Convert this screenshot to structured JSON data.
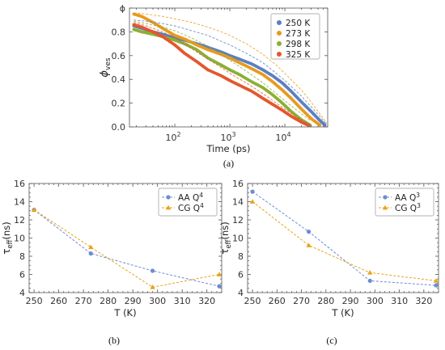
{
  "chart_data": [
    {
      "type": "scatter",
      "panel_caption": "(a)",
      "xlabel": "Time (ps)",
      "ylabel": "ϕ_ves",
      "ylabel_main": "ϕ",
      "ylabel_sub": "ves",
      "xscale": "log",
      "xlim": [
        15,
        60000
      ],
      "ylim": [
        0.0,
        1.0
      ],
      "x_ticks": [
        {
          "value": 100,
          "label_base": "10",
          "label_exp": "2"
        },
        {
          "value": 1000,
          "label_base": "10",
          "label_exp": "3"
        },
        {
          "value": 10000,
          "label_base": "10",
          "label_exp": "4"
        }
      ],
      "y_ticks": [
        {
          "value": 0.0,
          "label": "0.0"
        },
        {
          "value": 0.2,
          "label": "0.2"
        },
        {
          "value": 0.4,
          "label": "0.4"
        },
        {
          "value": 0.6,
          "label": "0.6"
        },
        {
          "value": 0.8,
          "label": "0.8"
        },
        {
          "value": 1.0,
          "label": "ϕ"
        }
      ],
      "legend_position": "top-right",
      "series": [
        {
          "name": "250 K",
          "color": "#5b7fc2",
          "x": [
            18,
            25,
            40,
            60,
            100,
            150,
            250,
            400,
            700,
            1000,
            1500,
            2500,
            4000,
            6000,
            9000,
            13000,
            20000,
            30000,
            42000,
            55000
          ],
          "y": [
            0.85,
            0.83,
            0.8,
            0.78,
            0.75,
            0.73,
            0.7,
            0.67,
            0.63,
            0.6,
            0.57,
            0.53,
            0.48,
            0.43,
            0.37,
            0.3,
            0.21,
            0.13,
            0.06,
            0.01
          ],
          "fit_x": [
            18,
            30,
            60,
            100,
            200,
            400,
            700,
            1000,
            2000,
            4000,
            7000,
            10000,
            20000,
            30000,
            45000,
            58000
          ],
          "fit_y": [
            0.9,
            0.89,
            0.87,
            0.85,
            0.81,
            0.77,
            0.72,
            0.69,
            0.62,
            0.54,
            0.45,
            0.39,
            0.26,
            0.17,
            0.08,
            0.02
          ]
        },
        {
          "name": "273 K",
          "color": "#e89a1e",
          "x": [
            18,
            25,
            40,
            60,
            100,
            150,
            250,
            400,
            700,
            1000,
            1500,
            2500,
            4000,
            6000,
            9000,
            13000,
            20000,
            30000,
            45000
          ],
          "y": [
            0.95,
            0.93,
            0.88,
            0.83,
            0.77,
            0.74,
            0.69,
            0.65,
            0.61,
            0.58,
            0.54,
            0.49,
            0.44,
            0.38,
            0.31,
            0.24,
            0.15,
            0.07,
            0.01
          ],
          "fit_x": [
            18,
            30,
            60,
            100,
            200,
            400,
            700,
            1000,
            2000,
            4000,
            7000,
            10000,
            20000,
            30000,
            45000,
            58000
          ],
          "fit_y": [
            0.96,
            0.95,
            0.93,
            0.91,
            0.88,
            0.84,
            0.8,
            0.77,
            0.7,
            0.61,
            0.52,
            0.45,
            0.31,
            0.21,
            0.1,
            0.03
          ]
        },
        {
          "name": "298 K",
          "color": "#8ab034",
          "x": [
            18,
            25,
            40,
            60,
            100,
            150,
            250,
            400,
            700,
            1000,
            1500,
            2500,
            4000,
            6000,
            9000,
            13000,
            20000,
            30000
          ],
          "y": [
            0.82,
            0.8,
            0.78,
            0.76,
            0.73,
            0.7,
            0.65,
            0.58,
            0.52,
            0.48,
            0.44,
            0.38,
            0.33,
            0.27,
            0.2,
            0.13,
            0.06,
            0.01
          ],
          "fit_x": [
            18,
            30,
            60,
            100,
            200,
            400,
            700,
            1000,
            2000,
            4000,
            7000,
            10000,
            20000,
            30000
          ],
          "fit_y": [
            0.89,
            0.87,
            0.84,
            0.81,
            0.75,
            0.68,
            0.61,
            0.56,
            0.47,
            0.37,
            0.28,
            0.22,
            0.11,
            0.05
          ]
        },
        {
          "name": "325 K",
          "color": "#e4572e",
          "x": [
            18,
            25,
            40,
            60,
            100,
            150,
            250,
            400,
            700,
            1000,
            1500,
            2500,
            4000,
            6000,
            9000,
            13000,
            20000,
            28000
          ],
          "y": [
            0.86,
            0.84,
            0.8,
            0.76,
            0.69,
            0.62,
            0.55,
            0.48,
            0.43,
            0.39,
            0.35,
            0.3,
            0.24,
            0.19,
            0.14,
            0.09,
            0.04,
            0.01
          ],
          "fit_x": [
            18,
            30,
            60,
            100,
            200,
            400,
            700,
            1000,
            2000,
            4000,
            7000,
            10000,
            20000,
            28000
          ],
          "fit_y": [
            0.88,
            0.85,
            0.8,
            0.75,
            0.66,
            0.57,
            0.5,
            0.45,
            0.37,
            0.28,
            0.2,
            0.15,
            0.06,
            0.02
          ]
        }
      ]
    },
    {
      "type": "line",
      "panel_caption": "(b)",
      "xlabel": "T (K)",
      "ylabel": "τ_eff(ns)",
      "ylabel_main": "τ",
      "ylabel_sub": "eff",
      "ylabel_rest": "(ns)",
      "xlim": [
        248,
        326
      ],
      "ylim": [
        4,
        16
      ],
      "x_ticks": [
        250,
        260,
        270,
        280,
        290,
        300,
        310,
        320
      ],
      "y_ticks": [
        4,
        6,
        8,
        10,
        12,
        14,
        16
      ],
      "legend_position": "top-right",
      "series": [
        {
          "name": "AA Q⁴",
          "name_text": "AA Q",
          "name_sup": "4",
          "color": "#6b8cd6",
          "marker": "circle",
          "x": [
            250,
            273,
            298,
            325
          ],
          "y": [
            13.1,
            8.3,
            6.4,
            4.7
          ]
        },
        {
          "name": "CG Q⁴",
          "name_text": "CG Q",
          "name_sup": "4",
          "color": "#e8a317",
          "marker": "triangle",
          "x": [
            250,
            273,
            298,
            325
          ],
          "y": [
            13.1,
            9.0,
            4.6,
            6.0
          ]
        }
      ]
    },
    {
      "type": "line",
      "panel_caption": "(c)",
      "xlabel": "T (K)",
      "ylabel": "τ_eff(ns)",
      "ylabel_main": "τ",
      "ylabel_sub": "eff",
      "ylabel_rest": "(ns)",
      "xlim": [
        248,
        326
      ],
      "ylim": [
        4,
        16
      ],
      "x_ticks": [
        250,
        260,
        270,
        280,
        290,
        300,
        310,
        320
      ],
      "y_ticks": [
        4,
        6,
        8,
        10,
        12,
        14,
        16
      ],
      "legend_position": "top-right",
      "series": [
        {
          "name": "AA Q³",
          "name_text": "AA Q",
          "name_sup": "3",
          "color": "#6b8cd6",
          "marker": "circle",
          "x": [
            250,
            273,
            298,
            325
          ],
          "y": [
            15.1,
            10.7,
            5.3,
            4.8
          ]
        },
        {
          "name": "CG Q³",
          "name_text": "CG Q",
          "name_sup": "3",
          "color": "#e8a317",
          "marker": "triangle",
          "x": [
            250,
            273,
            298,
            325
          ],
          "y": [
            14.0,
            9.2,
            6.2,
            5.3
          ]
        }
      ]
    }
  ]
}
